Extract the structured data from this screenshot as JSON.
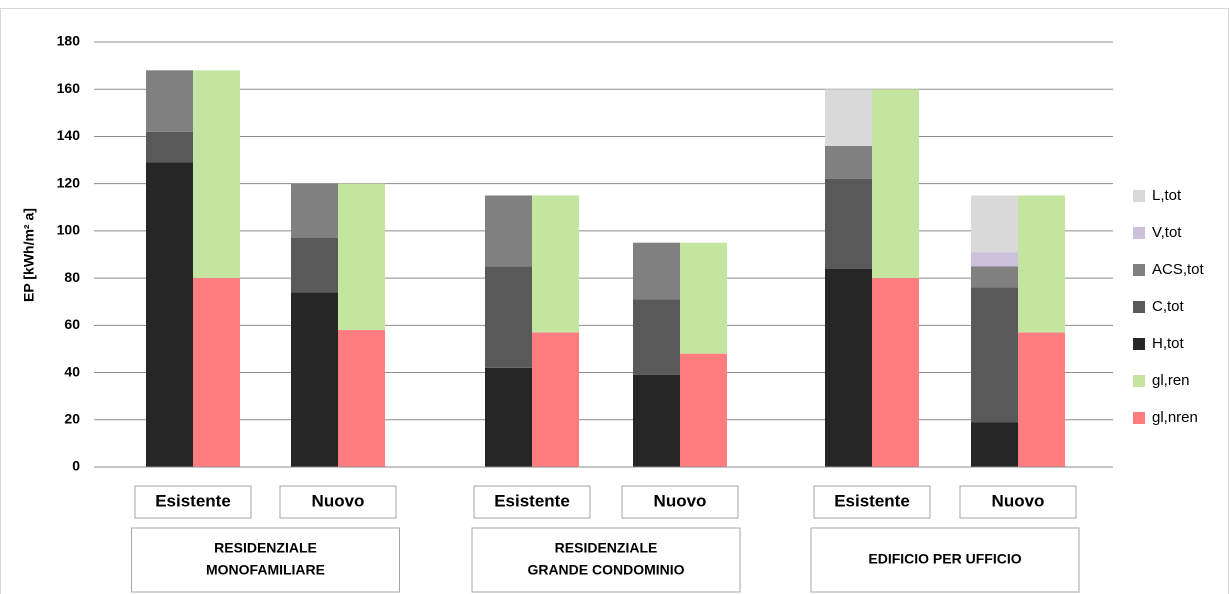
{
  "chart_data": {
    "type": "stacked-bar-pairs",
    "y_label": "EP [kWh/m² a]",
    "categories": [
      "Esistente",
      "Nuovo",
      "Esistente",
      "Nuovo",
      "Esistente",
      "Nuovo"
    ],
    "groups": [
      {
        "lines": [
          "RESIDENZIALE",
          "MONOFAMILIARE"
        ]
      },
      {
        "lines": [
          "RESIDENZIALE",
          "GRANDE CONDOMINIO"
        ]
      },
      {
        "lines": [
          "EDIFICIO PER UFFICIO"
        ]
      }
    ],
    "series": [
      {
        "name": "H,tot",
        "color": "#262626",
        "stack": "left",
        "values": [
          129,
          74,
          42,
          39,
          84,
          19
        ]
      },
      {
        "name": "C,tot",
        "color": "#595959",
        "stack": "left",
        "values": [
          13,
          23,
          43,
          32,
          38,
          57
        ]
      },
      {
        "name": "ACS,tot",
        "color": "#808080",
        "stack": "left",
        "values": [
          26,
          23,
          30,
          24,
          14,
          9
        ]
      },
      {
        "name": "V,tot",
        "color": "#ccc0da",
        "stack": "left",
        "values": [
          0,
          0,
          0,
          0,
          0,
          6
        ]
      },
      {
        "name": "L,tot",
        "color": "#d9d9d9",
        "stack": "left",
        "values": [
          0,
          0,
          0,
          0,
          24,
          24
        ]
      },
      {
        "name": "gl,nren",
        "color": "#ff7c80",
        "stack": "right",
        "values": [
          80,
          58,
          57,
          48,
          80,
          57
        ]
      },
      {
        "name": "gl,ren",
        "color": "#c4e59f",
        "stack": "right",
        "values": [
          88,
          62,
          58,
          47,
          80,
          58
        ]
      }
    ],
    "ylim": [
      0,
      180
    ],
    "yticks": [
      0,
      20,
      40,
      60,
      80,
      100,
      120,
      140,
      160,
      180
    ],
    "grid": true,
    "legend": "right"
  }
}
